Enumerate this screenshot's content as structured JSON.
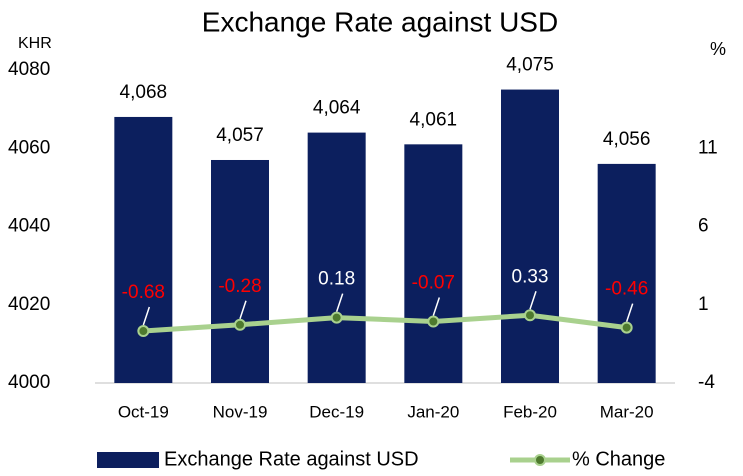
{
  "chart_data": {
    "type": "combo",
    "title": "Exchange Rate against USD",
    "y_label": "KHR",
    "y2_label": "%",
    "categories": [
      "Oct-19",
      "Nov-19",
      "Dec-19",
      "Jan-20",
      "Feb-20",
      "Mar-20"
    ],
    "series": [
      {
        "name": "Exchange Rate against USD",
        "type": "bar",
        "color": "#0c1f5e",
        "values": [
          4068,
          4057,
          4064,
          4061,
          4075,
          4056
        ],
        "value_labels": [
          "4,068",
          "4,057",
          "4,064",
          "4,061",
          "4,075",
          "4,056"
        ]
      },
      {
        "name": "% Change",
        "type": "line",
        "axis": "y2",
        "color": "#a9d18e",
        "marker_color": "#4e7a2e",
        "values": [
          -0.68,
          -0.28,
          0.18,
          -0.07,
          0.33,
          -0.46
        ]
      }
    ],
    "label_colors": {
      "negative": "#ff0000",
      "positive": "#ffffff"
    },
    "ylim": [
      4000,
      4080
    ],
    "yticks": [
      4000,
      4020,
      4040,
      4060,
      4080
    ],
    "y2lim": [
      -4,
      16
    ],
    "y2ticks": [
      -4,
      1,
      6,
      11
    ]
  }
}
